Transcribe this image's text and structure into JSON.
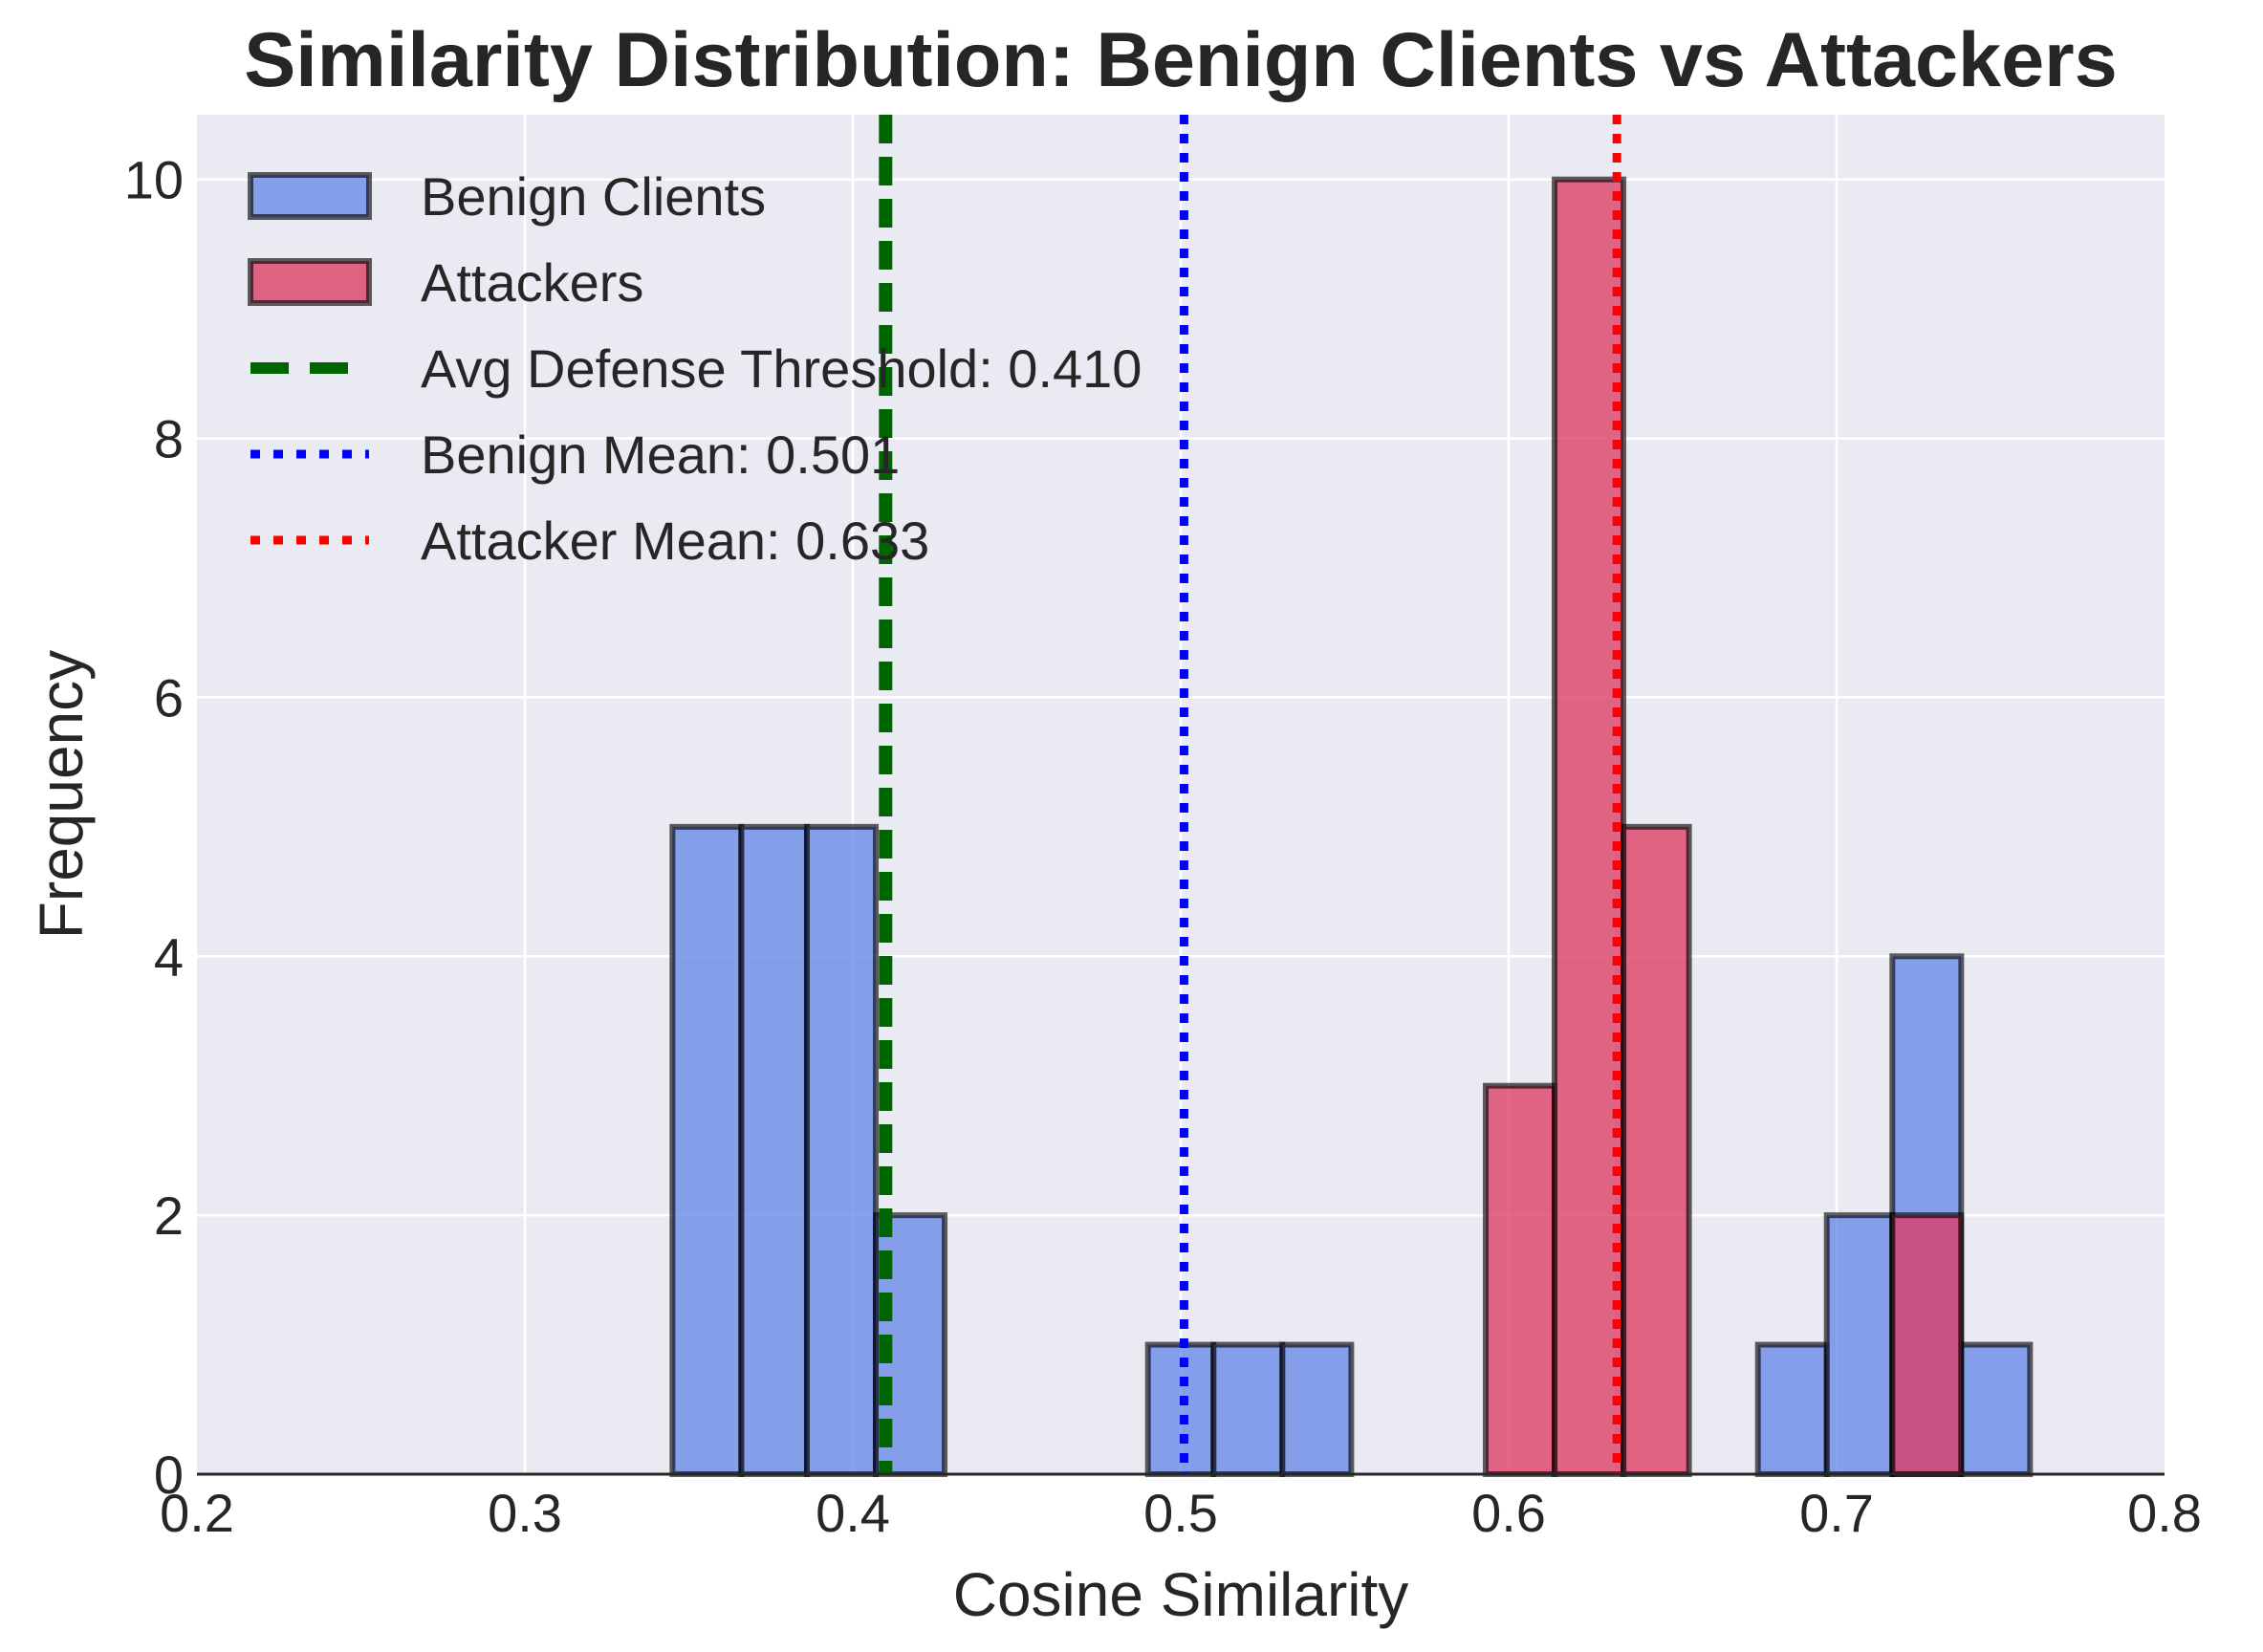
{
  "chart_data": {
    "type": "bar",
    "title": "Similarity Distribution: Benign Clients vs Attackers",
    "xlabel": "Cosine Similarity",
    "ylabel": "Frequency",
    "xlim": [
      0.2,
      0.8
    ],
    "ylim": [
      0,
      10.5
    ],
    "xticks": [
      "0.2",
      "0.3",
      "0.4",
      "0.5",
      "0.6",
      "0.7",
      "0.8"
    ],
    "yticks": [
      "0",
      "2",
      "4",
      "6",
      "8",
      "10"
    ],
    "grid": true,
    "legend_position": "top-left",
    "series": [
      {
        "name": "Benign Clients",
        "type": "histogram",
        "color": "#6688e8",
        "bins": [
          {
            "x0": 0.345,
            "x1": 0.366,
            "count": 5
          },
          {
            "x0": 0.366,
            "x1": 0.386,
            "count": 5
          },
          {
            "x0": 0.386,
            "x1": 0.407,
            "count": 5
          },
          {
            "x0": 0.407,
            "x1": 0.428,
            "count": 2
          },
          {
            "x0": 0.49,
            "x1": 0.51,
            "count": 1
          },
          {
            "x0": 0.51,
            "x1": 0.531,
            "count": 1
          },
          {
            "x0": 0.531,
            "x1": 0.552,
            "count": 1
          },
          {
            "x0": 0.676,
            "x1": 0.697,
            "count": 1
          },
          {
            "x0": 0.697,
            "x1": 0.717,
            "count": 2
          },
          {
            "x0": 0.717,
            "x1": 0.738,
            "count": 4
          },
          {
            "x0": 0.738,
            "x1": 0.759,
            "count": 1
          }
        ]
      },
      {
        "name": "Attackers",
        "type": "histogram",
        "color": "#dc3c64",
        "bins": [
          {
            "x0": 0.593,
            "x1": 0.614,
            "count": 3
          },
          {
            "x0": 0.614,
            "x1": 0.635,
            "count": 10
          },
          {
            "x0": 0.635,
            "x1": 0.655,
            "count": 5
          },
          {
            "x0": 0.717,
            "x1": 0.738,
            "count": 2
          }
        ]
      }
    ],
    "reference_lines": [
      {
        "name": "Avg Defense Threshold: 0.410",
        "x": 0.41,
        "color": "#006400",
        "style": "dashed"
      },
      {
        "name": "Benign Mean: 0.501",
        "x": 0.501,
        "color": "#0000ff",
        "style": "dotted"
      },
      {
        "name": "Attacker Mean: 0.633",
        "x": 0.633,
        "color": "#ff0000",
        "style": "dotted"
      }
    ]
  }
}
